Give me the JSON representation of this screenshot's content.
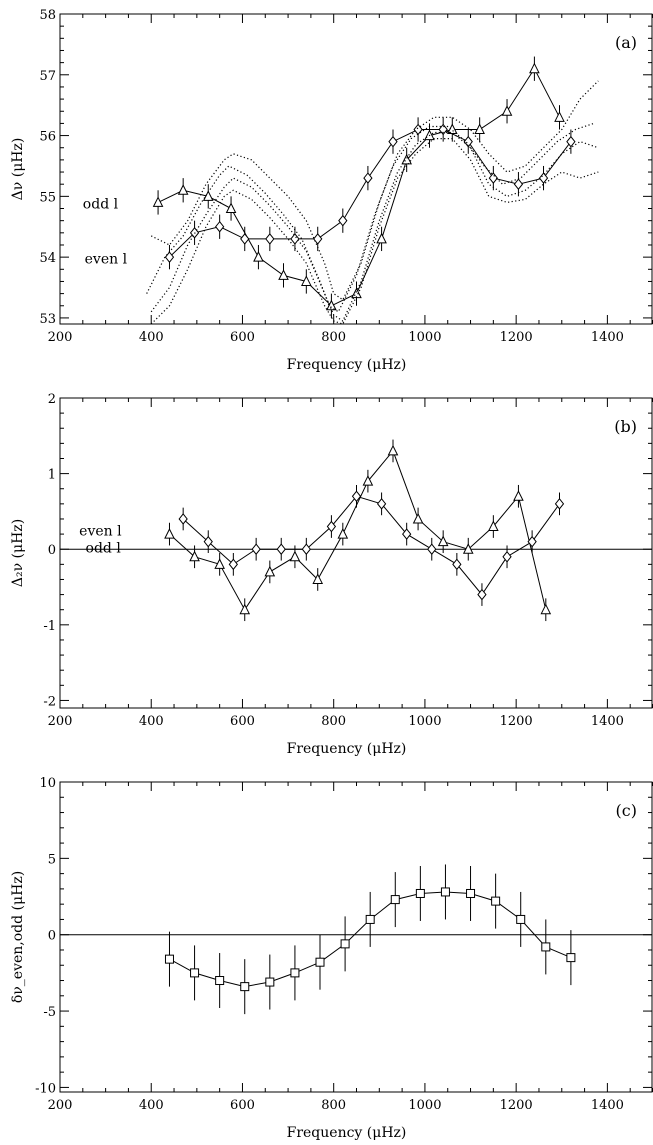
{
  "chart_data": [
    {
      "type": "line",
      "panel_label": "(a)",
      "xlabel": "Frequency (μHz)",
      "ylabel": "Δν (μHz)",
      "xlim": [
        200,
        1500
      ],
      "ylim": [
        52.9,
        58
      ],
      "xticks": [
        200,
        400,
        600,
        800,
        1000,
        1200,
        1400
      ],
      "yticks": [
        53,
        54,
        55,
        56,
        57,
        58
      ],
      "annotations": [
        {
          "text": "odd l",
          "x": 250,
          "y": 54.88
        },
        {
          "text": "even l",
          "x": 254,
          "y": 53.98
        }
      ],
      "series": [
        {
          "name": "odd l",
          "marker": "triangle",
          "yerr": 0.2,
          "x": [
            415,
            470,
            525,
            575,
            635,
            690,
            740,
            795,
            850,
            905,
            960,
            1010,
            1060,
            1120,
            1180,
            1240,
            1295
          ],
          "y": [
            54.9,
            55.1,
            55.0,
            54.8,
            54.0,
            53.7,
            53.6,
            53.2,
            53.4,
            54.3,
            55.6,
            56.0,
            56.1,
            56.1,
            56.4,
            57.1,
            56.3
          ]
        },
        {
          "name": "even l",
          "marker": "diamond",
          "yerr": 0.2,
          "x": [
            440,
            495,
            550,
            605,
            660,
            715,
            765,
            820,
            875,
            930,
            985,
            1040,
            1095,
            1150,
            1205,
            1260,
            1320
          ],
          "y": [
            54.0,
            54.4,
            54.5,
            54.3,
            54.3,
            54.3,
            54.3,
            54.6,
            55.3,
            55.9,
            56.1,
            56.1,
            55.9,
            55.3,
            55.2,
            55.3,
            55.9
          ]
        },
        {
          "style": "dotted",
          "x": [
            400,
            440,
            480,
            520,
            560,
            580,
            620,
            660,
            700,
            740,
            780,
            800,
            820,
            860,
            900,
            940,
            980,
            1020,
            1060,
            1100,
            1140,
            1180,
            1220,
            1260,
            1300,
            1340,
            1380
          ],
          "y": [
            54.35,
            54.2,
            54.6,
            55.2,
            55.6,
            55.7,
            55.6,
            55.3,
            55.0,
            54.6,
            53.9,
            53.4,
            53.3,
            53.9,
            54.9,
            55.7,
            56.1,
            56.3,
            56.3,
            56.1,
            55.7,
            55.4,
            55.5,
            55.8,
            56.1,
            56.6,
            56.9
          ]
        },
        {
          "style": "dotted",
          "x": [
            390,
            430,
            470,
            510,
            550,
            570,
            610,
            650,
            690,
            730,
            770,
            790,
            810,
            850,
            890,
            930,
            970,
            1010,
            1050,
            1090,
            1130,
            1170,
            1210,
            1250,
            1290,
            1330,
            1370
          ],
          "y": [
            53.4,
            54.0,
            54.35,
            54.9,
            55.35,
            55.5,
            55.35,
            55.05,
            54.7,
            54.3,
            53.6,
            53.2,
            53.1,
            53.7,
            54.7,
            55.5,
            55.95,
            56.15,
            56.15,
            55.9,
            55.5,
            55.2,
            55.3,
            55.6,
            55.9,
            56.1,
            56.2
          ]
        },
        {
          "style": "dotted",
          "x": [
            400,
            440,
            480,
            520,
            560,
            580,
            620,
            660,
            700,
            740,
            780,
            800,
            820,
            860,
            900,
            940,
            980,
            1020,
            1060,
            1100,
            1140,
            1180,
            1220,
            1260,
            1300,
            1340,
            1380
          ],
          "y": [
            53.1,
            53.5,
            54.2,
            54.7,
            55.15,
            55.3,
            55.15,
            54.85,
            54.5,
            54.1,
            53.4,
            53.05,
            52.95,
            53.6,
            54.6,
            55.4,
            55.85,
            56.05,
            56.05,
            55.8,
            55.2,
            55.0,
            55.1,
            55.35,
            55.7,
            55.9,
            55.8
          ]
        },
        {
          "style": "dotted",
          "x": [
            400,
            440,
            480,
            520,
            560,
            580,
            620,
            660,
            700,
            740,
            780,
            800,
            820,
            860,
            900,
            940,
            980,
            1020,
            1060,
            1100,
            1140,
            1180,
            1220,
            1260,
            1300,
            1340,
            1380
          ],
          "y": [
            52.9,
            53.2,
            53.8,
            54.5,
            55.0,
            55.1,
            54.95,
            54.65,
            54.3,
            53.9,
            53.2,
            52.95,
            52.9,
            53.5,
            54.5,
            55.3,
            55.7,
            55.95,
            55.95,
            55.6,
            55.0,
            54.9,
            54.95,
            55.2,
            55.4,
            55.3,
            55.4
          ]
        }
      ]
    },
    {
      "type": "line",
      "panel_label": "(b)",
      "xlabel": "Frequency (μHz)",
      "ylabel": "Δ₂ν (μHz)",
      "xlim": [
        200,
        1500
      ],
      "ylim": [
        -2.1,
        2
      ],
      "xticks": [
        200,
        400,
        600,
        800,
        1000,
        1200,
        1400
      ],
      "yticks": [
        -2,
        -1,
        0,
        1,
        2
      ],
      "hline": 0,
      "annotations": [
        {
          "text": "even l",
          "x": 242,
          "y": 0.25
        },
        {
          "text": "odd l",
          "x": 256,
          "y": 0.02
        }
      ],
      "series": [
        {
          "name": "odd l",
          "marker": "triangle",
          "yerr": 0.15,
          "x": [
            440,
            495,
            550,
            605,
            660,
            715,
            765,
            820,
            875,
            930,
            985,
            1040,
            1095,
            1150,
            1205,
            1265
          ],
          "y": [
            0.2,
            -0.1,
            -0.2,
            -0.8,
            -0.3,
            -0.1,
            -0.4,
            0.2,
            0.9,
            1.3,
            0.4,
            0.1,
            0.0,
            0.3,
            0.7,
            -0.8
          ]
        },
        {
          "name": "even l",
          "marker": "diamond",
          "yerr": 0.15,
          "x": [
            470,
            525,
            580,
            630,
            685,
            740,
            795,
            850,
            905,
            960,
            1015,
            1070,
            1125,
            1180,
            1235,
            1295
          ],
          "y": [
            0.4,
            0.1,
            -0.2,
            0.0,
            0.0,
            0.0,
            0.3,
            0.7,
            0.6,
            0.2,
            0.0,
            -0.2,
            -0.6,
            -0.1,
            0.1,
            0.6
          ]
        }
      ]
    },
    {
      "type": "line",
      "panel_label": "(c)",
      "xlabel": "Frequency (μHz)",
      "ylabel": "δν_even,odd (μHz)",
      "xlim": [
        200,
        1500
      ],
      "ylim": [
        -10.3,
        10
      ],
      "xticks": [
        200,
        400,
        600,
        800,
        1000,
        1200,
        1400
      ],
      "yticks": [
        -10,
        -5,
        0,
        5,
        10
      ],
      "hline": 0,
      "series": [
        {
          "marker": "square",
          "x": [
            440,
            495,
            550,
            605,
            660,
            715,
            770,
            825,
            880,
            935,
            990,
            1045,
            1100,
            1155,
            1210,
            1265,
            1320
          ],
          "y": [
            -1.6,
            -2.5,
            -3.0,
            -3.4,
            -3.1,
            -2.5,
            -1.8,
            -0.6,
            1.0,
            2.3,
            2.7,
            2.8,
            2.7,
            2.2,
            1.0,
            -0.8,
            -1.5
          ],
          "yerr": [
            1.8,
            1.8,
            1.8,
            1.8,
            1.8,
            1.8,
            1.8,
            1.8,
            1.8,
            1.8,
            1.8,
            1.8,
            1.8,
            1.8,
            1.8,
            1.8,
            1.8
          ]
        }
      ]
    }
  ]
}
